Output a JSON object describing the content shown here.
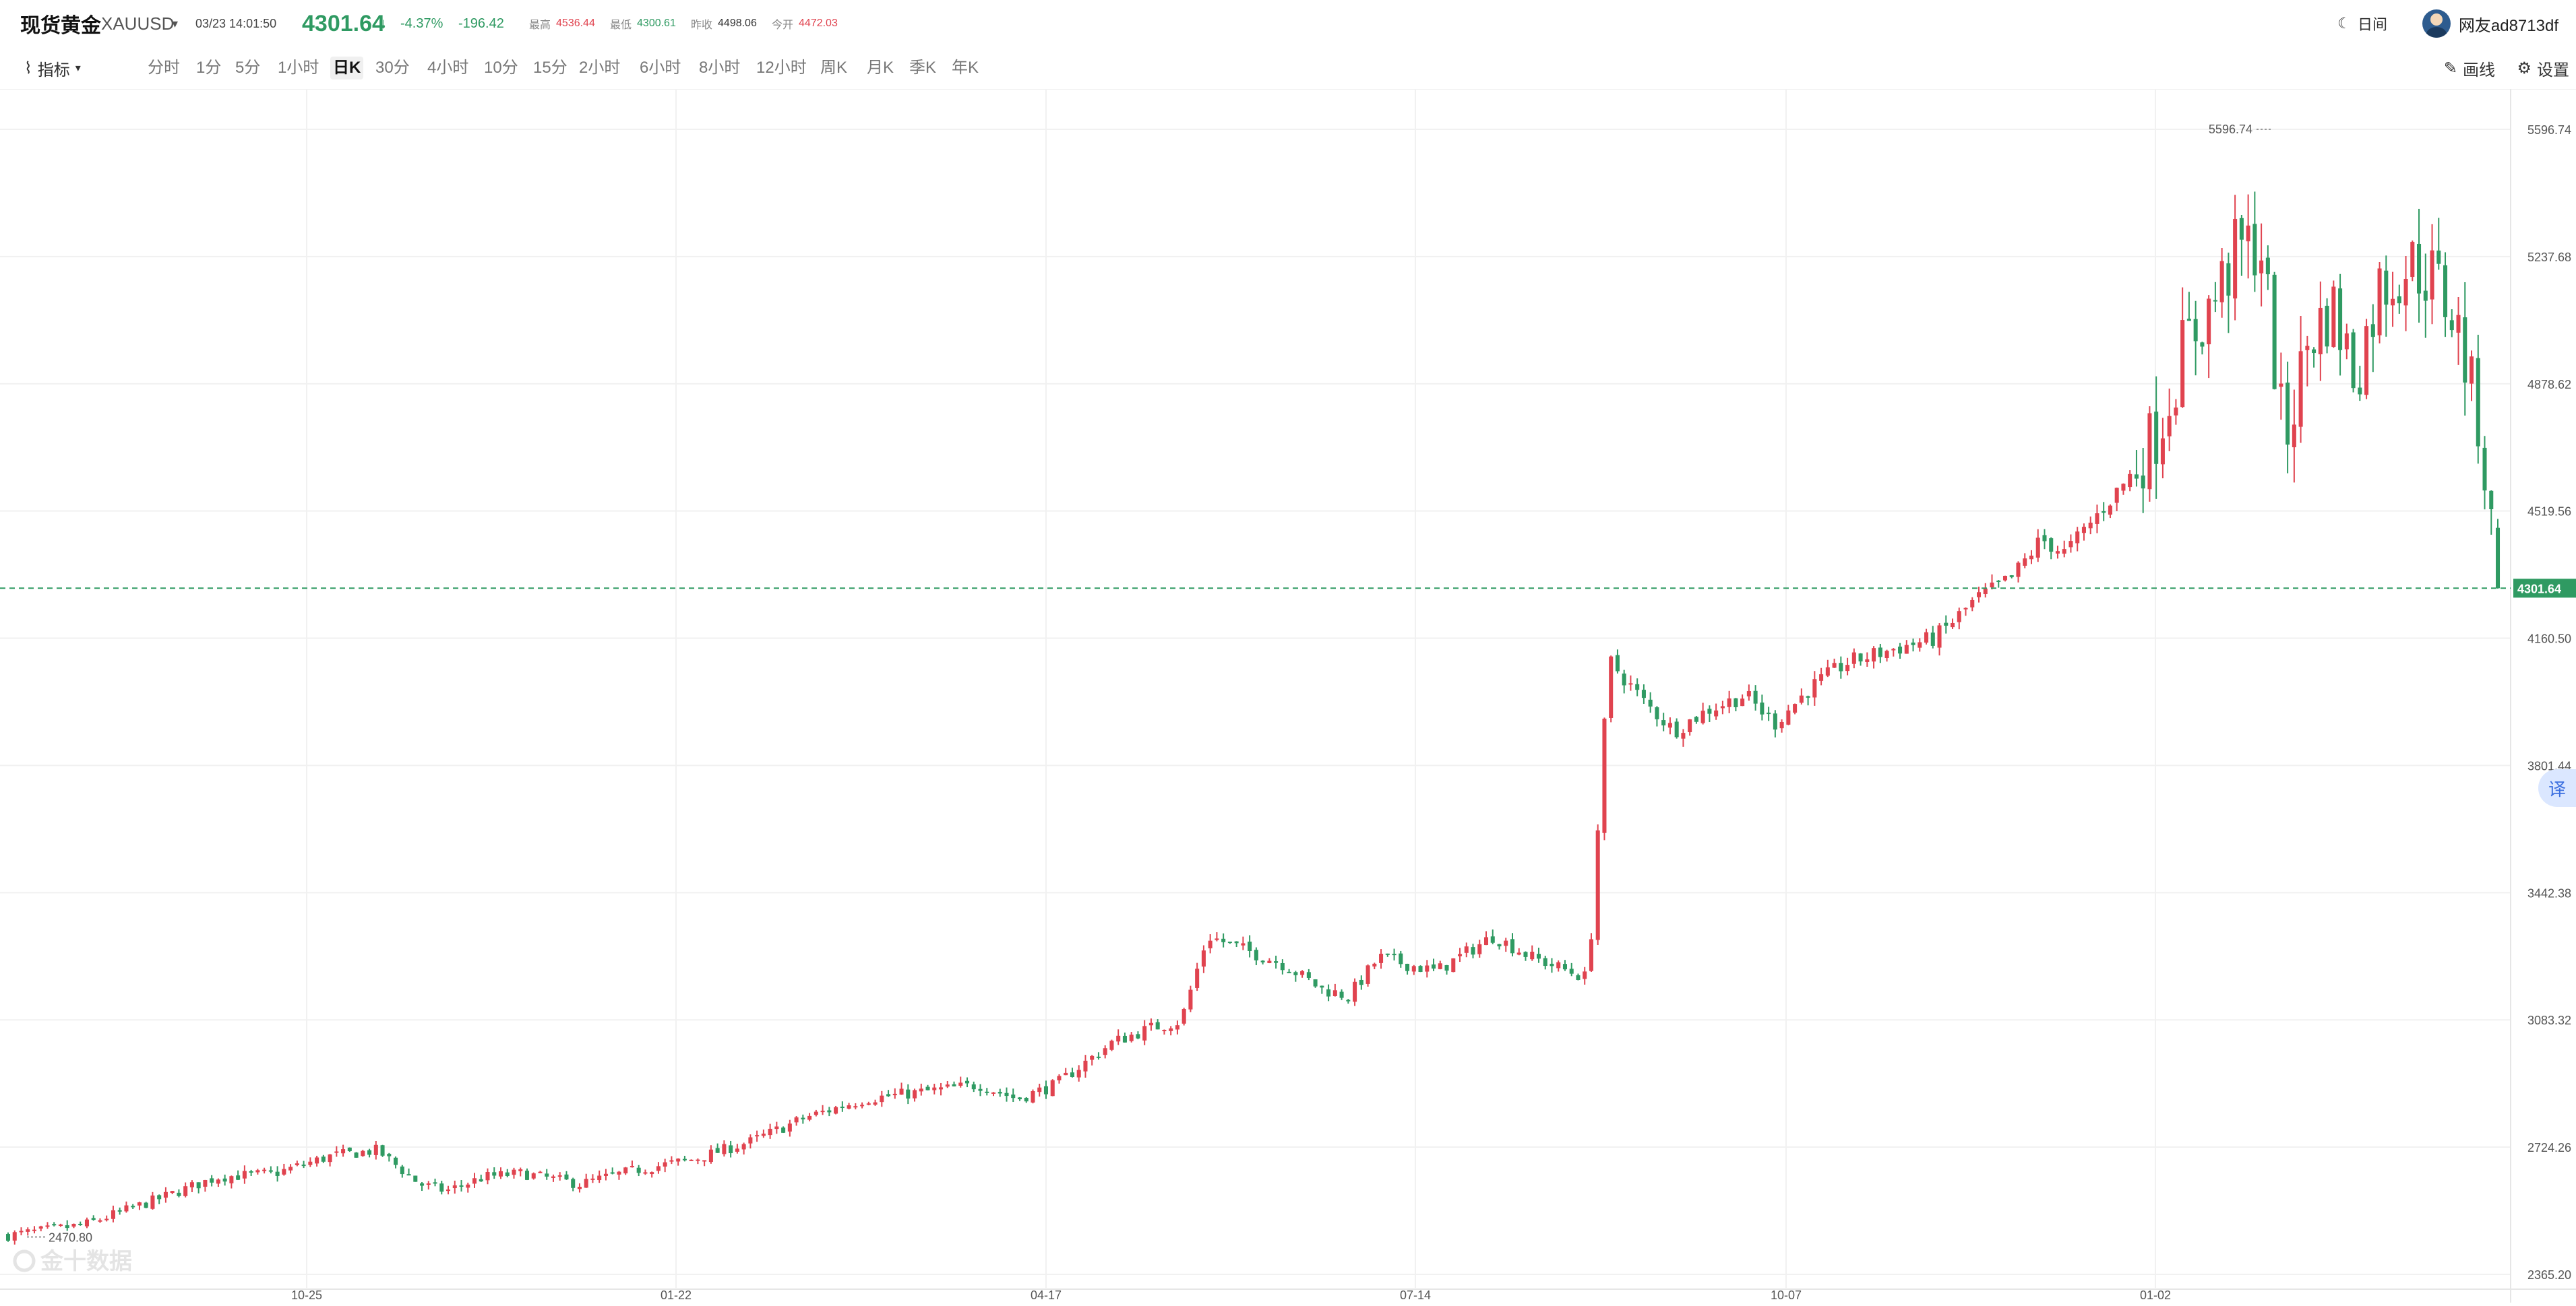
{
  "header": {
    "title": "现货黄金",
    "symbol": "XAUUSD",
    "datetime": "03/23 14:01:50",
    "price": "4301.64",
    "change_pct": "-4.37%",
    "change_abs": "-196.42",
    "stats": [
      {
        "label": "最高",
        "value": "4536.44",
        "color": "red"
      },
      {
        "label": "最低",
        "value": "4300.61",
        "color": "green"
      },
      {
        "label": "昨收",
        "value": "4498.06",
        "color": "dark"
      },
      {
        "label": "今开",
        "value": "4472.03",
        "color": "red"
      }
    ],
    "night_mode_label": "日间",
    "username": "网友ad8713df"
  },
  "toolbar": {
    "indicator_label": "指标",
    "periods": [
      "分时",
      "1分",
      "5分",
      "1小时",
      "日K",
      "30分",
      "4小时",
      "10分",
      "15分",
      "2小时",
      "6小时",
      "8小时",
      "12小时",
      "周K",
      "月K",
      "季K",
      "年K"
    ],
    "active_period": "日K",
    "draw_label": "画线",
    "settings_label": "设置"
  },
  "translate_label": "译",
  "watermark": "金十数据",
  "colors": {
    "up": "#e0434f",
    "down": "#2f9a62",
    "grid": "#f1f1f1",
    "axis_text": "#555555"
  },
  "chart_data": {
    "type": "candlestick",
    "y_ticks": [
      "5596.74",
      "5237.68",
      "4878.62",
      "4519.56",
      "4160.50",
      "3801.44",
      "3442.38",
      "3083.32",
      "2724.26",
      "2365.20"
    ],
    "ylim": [
      2365.2,
      5596.74
    ],
    "x_ticks": [
      "10-25",
      "01-22",
      "04-17",
      "07-14",
      "10-07",
      "01-02"
    ],
    "current_price_label": "4301.64",
    "max_label": "5596.74",
    "min_label": "2470.80",
    "approx_candles": 380
  }
}
